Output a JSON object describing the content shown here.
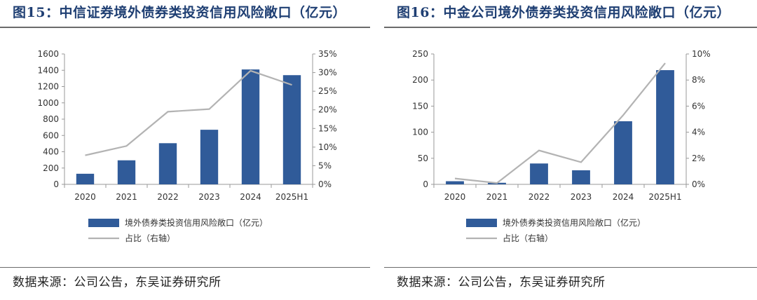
{
  "colors": {
    "bar": "#305b99",
    "line": "#b3b3b3",
    "title": "#1f3f73",
    "axis": "#999999"
  },
  "charts": [
    {
      "title": "图15：中信证券境外债券类投资信用风险敞口（亿元）",
      "source": "数据来源：公司公告，东吴证券研究所",
      "chart_data": {
        "type": "bar",
        "categories": [
          "2020",
          "2021",
          "2022",
          "2023",
          "2024",
          "2025H1"
        ],
        "series": [
          {
            "name": "境外债券类投资信用风险敞口（亿元）",
            "type": "bar",
            "axis": "left",
            "values": [
              130,
              295,
              505,
              670,
              1410,
              1340
            ]
          },
          {
            "name": "占比（右轴）",
            "type": "line",
            "axis": "right",
            "values": [
              7.8,
              10.3,
              19.5,
              20.2,
              30.5,
              26.7
            ]
          }
        ],
        "ylim": [
          0,
          1600
        ],
        "yticks": [
          "0",
          "200",
          "400",
          "600",
          "800",
          "1000",
          "1200",
          "1400",
          "1600"
        ],
        "y2lim": [
          0,
          35
        ],
        "y2ticks": [
          "0%",
          "5%",
          "10%",
          "15%",
          "20%",
          "25%",
          "30%",
          "35%"
        ],
        "legend": "bottom"
      }
    },
    {
      "title": "图16：中金公司境外债券类投资信用风险敞口（亿元）",
      "source": "数据来源：公司公告，东吴证券研究所",
      "chart_data": {
        "type": "bar",
        "categories": [
          "2020",
          "2021",
          "2022",
          "2023",
          "2024",
          "2025H1"
        ],
        "series": [
          {
            "name": "境外债券类投资信用风险敞口（亿元）",
            "type": "bar",
            "axis": "left",
            "values": [
              6,
              3,
              40,
              27,
              121,
              219
            ]
          },
          {
            "name": "占比（右轴）",
            "type": "line",
            "axis": "right",
            "values": [
              0.45,
              0.1,
              2.6,
              1.7,
              5.3,
              9.3
            ]
          }
        ],
        "ylim": [
          0,
          250
        ],
        "yticks": [
          "0",
          "50",
          "100",
          "150",
          "200",
          "250"
        ],
        "y2lim": [
          0,
          10
        ],
        "y2ticks": [
          "0%",
          "2%",
          "4%",
          "6%",
          "8%",
          "10%"
        ],
        "legend": "bottom"
      }
    }
  ]
}
